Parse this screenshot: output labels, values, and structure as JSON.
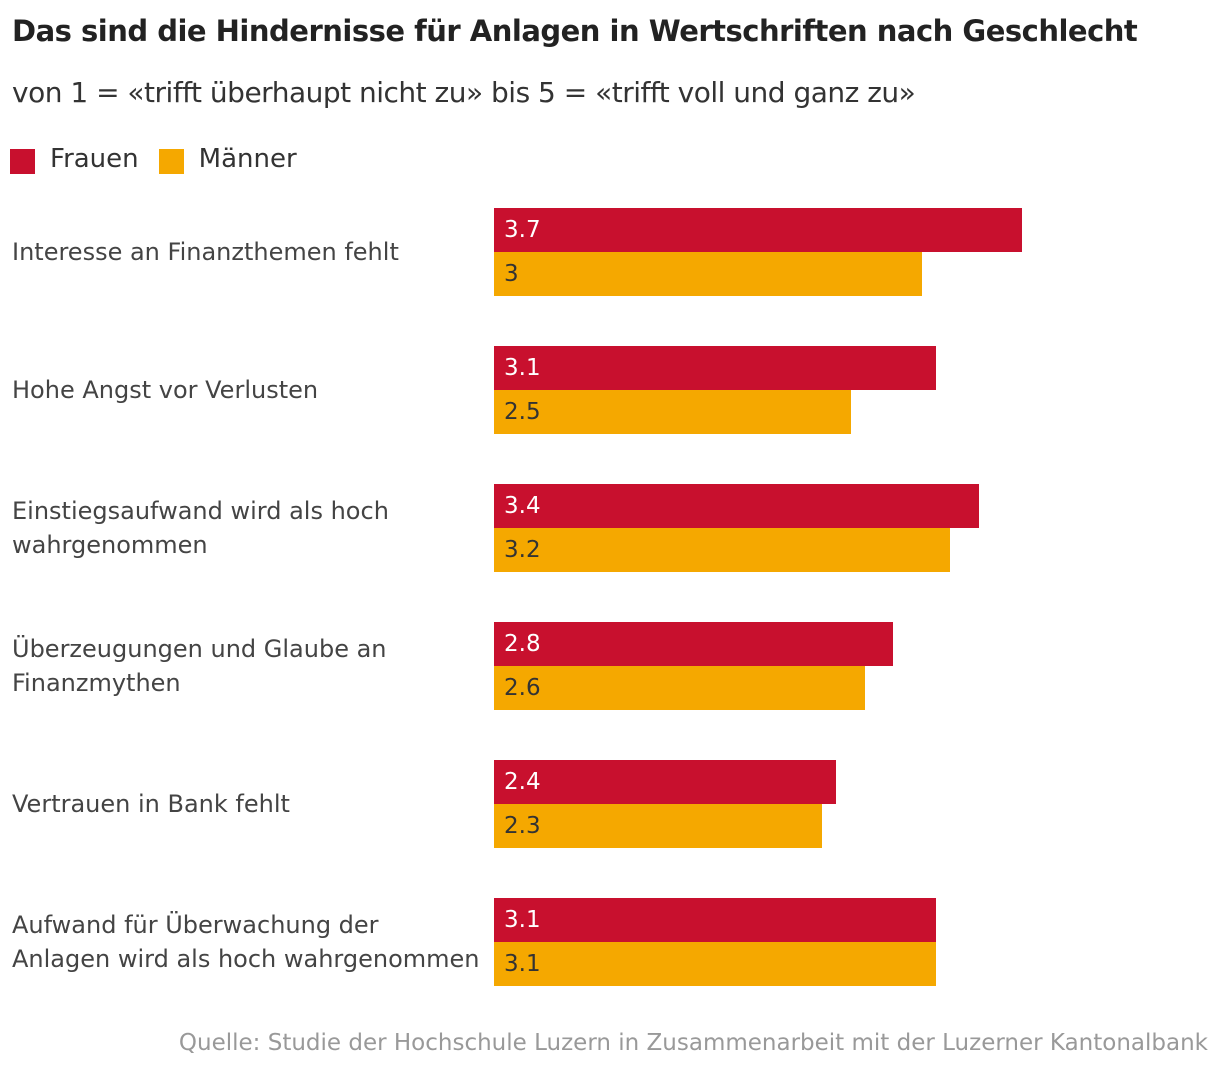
{
  "chart_data": {
    "type": "hbar",
    "title": "Das sind die Hindernisse für Anlagen in Wertschriften nach Geschlecht",
    "subtitle": "von 1 = «trifft überhaupt nicht zu» bis 5 = «trifft voll und ganz zu»",
    "categories": [
      "Interesse an Finanzthemen fehlt",
      "Hohe Angst vor Verlusten",
      "Einstiegsaufwand wird als hoch wahrgenommen",
      "Überzeugungen und Glaube an Finanzmythen",
      "Vertrauen in Bank fehlt",
      "Aufwand für Überwachung der Anlagen wird als hoch wahrgenommen"
    ],
    "series": [
      {
        "name": "Frauen",
        "color": "#c8102e",
        "values": [
          3.7,
          3.1,
          3.4,
          2.8,
          2.4,
          3.1
        ]
      },
      {
        "name": "Männer",
        "color": "#f5a800",
        "values": [
          3,
          2.5,
          3.2,
          2.6,
          2.3,
          3.1
        ]
      }
    ],
    "xlim": [
      0,
      5
    ],
    "source": "Quelle: Studie der Hochschule Luzern in Zusammenarbeit mit der Luzerner Kantonalbank"
  }
}
